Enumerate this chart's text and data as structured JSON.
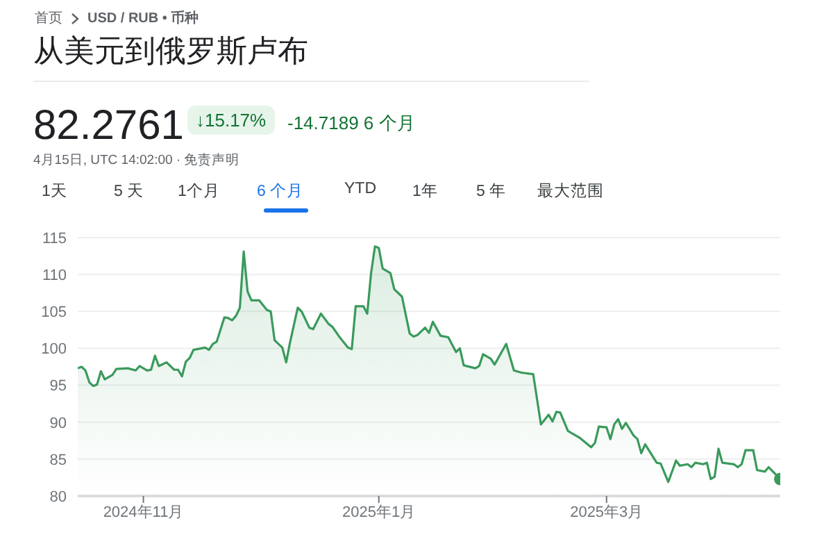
{
  "chart_data": {
    "type": "area",
    "title": "从美元到俄罗斯卢布",
    "annotations": [
      "首页",
      "USD / RUB • 币种",
      "82.2761",
      "↓15.17%",
      "-14.7189 6 个月",
      "4月15日, UTC 14:02:00 · 免责声明",
      "1天",
      "5 天",
      "1个月",
      "6 个月",
      "YTD",
      "1年",
      "5 年",
      "最大范围"
    ],
    "x": [
      "2024-10-15",
      "2024-10-16",
      "2024-10-17",
      "2024-10-18",
      "2024-10-19",
      "2024-10-20",
      "2024-10-21",
      "2024-10-22",
      "2024-10-24",
      "2024-10-25",
      "2024-10-28",
      "2024-10-30",
      "2024-10-31",
      "2024-11-02",
      "2024-11-03",
      "2024-11-04",
      "2024-11-05",
      "2024-11-07",
      "2024-11-09",
      "2024-11-10",
      "2024-11-11",
      "2024-11-12",
      "2024-11-13",
      "2024-11-14",
      "2024-11-17",
      "2024-11-18",
      "2024-11-19",
      "2024-11-20",
      "2024-11-22",
      "2024-11-23",
      "2024-11-24",
      "2024-11-25",
      "2024-11-26",
      "2024-11-27",
      "2024-11-28",
      "2024-11-29",
      "2024-12-01",
      "2024-12-03",
      "2024-12-04",
      "2024-12-05",
      "2024-12-06",
      "2024-12-07",
      "2024-12-08",
      "2024-12-09",
      "2024-12-11",
      "2024-12-12",
      "2024-12-14",
      "2024-12-15",
      "2024-12-17",
      "2024-12-19",
      "2024-12-20",
      "2024-12-22",
      "2024-12-24",
      "2024-12-25",
      "2024-12-26",
      "2024-12-28",
      "2024-12-29",
      "2024-12-30",
      "2024-12-31",
      "2025-01-01",
      "2025-01-02",
      "2025-01-04",
      "2025-01-05",
      "2025-01-07",
      "2025-01-09",
      "2025-01-10",
      "2025-01-11",
      "2025-01-13",
      "2025-01-14",
      "2025-01-15",
      "2025-01-17",
      "2025-01-19",
      "2025-01-21",
      "2025-01-22",
      "2025-01-23",
      "2025-01-26",
      "2025-01-27",
      "2025-01-28",
      "2025-01-30",
      "2025-01-31",
      "2025-02-03",
      "2025-02-05",
      "2025-02-07",
      "2025-02-10",
      "2025-02-12",
      "2025-02-14",
      "2025-02-15",
      "2025-02-16",
      "2025-02-17",
      "2025-02-19",
      "2025-02-22",
      "2025-02-25",
      "2025-02-26",
      "2025-02-27",
      "2025-03-01",
      "2025-03-02",
      "2025-03-03",
      "2025-03-04",
      "2025-03-05",
      "2025-03-06",
      "2025-03-08",
      "2025-03-09",
      "2025-03-10",
      "2025-03-11",
      "2025-03-14",
      "2025-03-15",
      "2025-03-17",
      "2025-03-19",
      "2025-03-20",
      "2025-03-22",
      "2025-03-23",
      "2025-03-24",
      "2025-03-26",
      "2025-03-27",
      "2025-03-28",
      "2025-03-29",
      "2025-03-30",
      "2025-03-31",
      "2025-04-03",
      "2025-04-04",
      "2025-04-05",
      "2025-04-06",
      "2025-04-08",
      "2025-04-09",
      "2025-04-11",
      "2025-04-12",
      "2025-04-15"
    ],
    "series": [
      {
        "color": "#3a9a5c",
        "values": [
          97.3,
          97.5,
          97.0,
          95.4,
          94.9,
          95.1,
          96.9,
          95.8,
          96.4,
          97.2,
          97.3,
          97.0,
          97.6,
          97.0,
          97.1,
          99.0,
          97.6,
          98.1,
          97.1,
          97.1,
          96.2,
          98.2,
          98.7,
          99.8,
          100.1,
          99.8,
          100.6,
          100.9,
          104.2,
          104.1,
          103.8,
          104.4,
          105.5,
          113.1,
          107.7,
          106.5,
          106.5,
          105.2,
          105.0,
          101.1,
          100.6,
          100.1,
          98.1,
          100.8,
          105.5,
          105.0,
          102.8,
          102.6,
          104.7,
          103.3,
          102.9,
          101.4,
          100.1,
          99.9,
          105.7,
          105.7,
          104.7,
          110.2,
          113.8,
          113.6,
          110.8,
          110.2,
          108.0,
          107.0,
          102.0,
          101.6,
          101.8,
          102.8,
          102.1,
          103.6,
          101.7,
          101.5,
          99.5,
          100.0,
          97.7,
          97.3,
          97.6,
          99.2,
          98.6,
          97.8,
          100.6,
          97.0,
          96.7,
          96.5,
          89.7,
          91.0,
          90.1,
          91.4,
          91.3,
          88.8,
          87.9,
          86.6,
          87.2,
          89.4,
          89.3,
          87.7,
          89.7,
          90.4,
          89.1,
          89.9,
          88.2,
          87.7,
          85.8,
          87.0,
          84.5,
          84.4,
          81.9,
          84.8,
          84.1,
          84.3,
          83.9,
          84.5,
          84.3,
          84.5,
          82.3,
          82.6,
          86.4,
          84.5,
          84.3,
          83.9,
          84.3,
          86.2,
          86.2,
          83.5,
          83.3,
          83.9,
          82.3
        ]
      }
    ],
    "xlim": [
      "2024-10-15",
      "2025-04-15"
    ],
    "xticks": [
      {
        "value": "2024-11-01",
        "label": "2024年11月"
      },
      {
        "value": "2025-01-01",
        "label": "2025年1月"
      },
      {
        "value": "2025-03-01",
        "label": "2025年3月"
      }
    ],
    "ylim": [
      80,
      115
    ],
    "yticks": [
      80,
      85,
      90,
      95,
      100,
      105,
      110,
      115
    ],
    "grid": "y"
  }
}
